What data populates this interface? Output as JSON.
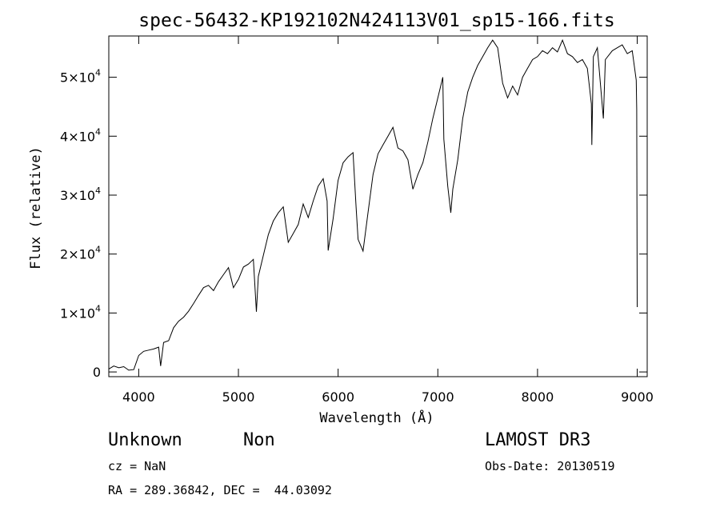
{
  "chart_data": {
    "type": "line",
    "title": "spec-56432-KP192102N424113V01_sp15-166.fits",
    "xlabel": "Wavelength (Å)",
    "ylabel": "Flux (relative)",
    "xlim": [
      3700,
      9100
    ],
    "ylim": [
      -800,
      57000
    ],
    "xticks": [
      4000,
      5000,
      6000,
      7000,
      8000,
      9000
    ],
    "xtick_labels": [
      "4000",
      "5000",
      "6000",
      "7000",
      "8000",
      "9000"
    ],
    "yticks": [
      0,
      10000,
      20000,
      30000,
      40000,
      50000
    ],
    "ytick_labels": [
      {
        "mant": "0",
        "exp": ""
      },
      {
        "mant": "1×10",
        "exp": "4"
      },
      {
        "mant": "2×10",
        "exp": "4"
      },
      {
        "mant": "3×10",
        "exp": "4"
      },
      {
        "mant": "4×10",
        "exp": "4"
      },
      {
        "mant": "5×10",
        "exp": "4"
      }
    ],
    "grid": false,
    "series": [
      {
        "values": [
          [
            3700,
            500
          ],
          [
            3750,
            1000
          ],
          [
            3800,
            700
          ],
          [
            3850,
            900
          ],
          [
            3900,
            300
          ],
          [
            3950,
            400
          ],
          [
            4000,
            2800
          ],
          [
            4050,
            3500
          ],
          [
            4100,
            3700
          ],
          [
            4150,
            3900
          ],
          [
            4200,
            4200
          ],
          [
            4220,
            1000
          ],
          [
            4250,
            5000
          ],
          [
            4300,
            5300
          ],
          [
            4350,
            7500
          ],
          [
            4400,
            8600
          ],
          [
            4450,
            9300
          ],
          [
            4500,
            10300
          ],
          [
            4550,
            11600
          ],
          [
            4600,
            13000
          ],
          [
            4650,
            14300
          ],
          [
            4700,
            14700
          ],
          [
            4750,
            13800
          ],
          [
            4800,
            15300
          ],
          [
            4850,
            16500
          ],
          [
            4900,
            17700
          ],
          [
            4950,
            14300
          ],
          [
            5000,
            15700
          ],
          [
            5050,
            17800
          ],
          [
            5100,
            18300
          ],
          [
            5150,
            19100
          ],
          [
            5180,
            10200
          ],
          [
            5200,
            16200
          ],
          [
            5250,
            19800
          ],
          [
            5300,
            23300
          ],
          [
            5350,
            25600
          ],
          [
            5400,
            27000
          ],
          [
            5450,
            28000
          ],
          [
            5500,
            22000
          ],
          [
            5550,
            23500
          ],
          [
            5600,
            25000
          ],
          [
            5650,
            28500
          ],
          [
            5700,
            26200
          ],
          [
            5750,
            29000
          ],
          [
            5800,
            31500
          ],
          [
            5850,
            32800
          ],
          [
            5890,
            29000
          ],
          [
            5900,
            20600
          ],
          [
            5950,
            26000
          ],
          [
            6000,
            32500
          ],
          [
            6050,
            35500
          ],
          [
            6100,
            36500
          ],
          [
            6150,
            37200
          ],
          [
            6180,
            28000
          ],
          [
            6200,
            22500
          ],
          [
            6250,
            20500
          ],
          [
            6300,
            27000
          ],
          [
            6350,
            33500
          ],
          [
            6400,
            37000
          ],
          [
            6450,
            38500
          ],
          [
            6500,
            40000
          ],
          [
            6550,
            41500
          ],
          [
            6600,
            38000
          ],
          [
            6650,
            37500
          ],
          [
            6700,
            36000
          ],
          [
            6750,
            31000
          ],
          [
            6800,
            33500
          ],
          [
            6850,
            35500
          ],
          [
            6900,
            39000
          ],
          [
            6950,
            43000
          ],
          [
            7000,
            46500
          ],
          [
            7050,
            50000
          ],
          [
            7060,
            39500
          ],
          [
            7100,
            31500
          ],
          [
            7130,
            27000
          ],
          [
            7150,
            31000
          ],
          [
            7200,
            36000
          ],
          [
            7250,
            43000
          ],
          [
            7300,
            47500
          ],
          [
            7350,
            50000
          ],
          [
            7400,
            52000
          ],
          [
            7450,
            53500
          ],
          [
            7500,
            55000
          ],
          [
            7550,
            56300
          ],
          [
            7600,
            55000
          ],
          [
            7650,
            49000
          ],
          [
            7700,
            46500
          ],
          [
            7750,
            48500
          ],
          [
            7800,
            47000
          ],
          [
            7850,
            50000
          ],
          [
            7900,
            51500
          ],
          [
            7950,
            53000
          ],
          [
            8000,
            53500
          ],
          [
            8050,
            54500
          ],
          [
            8100,
            54000
          ],
          [
            8150,
            55000
          ],
          [
            8200,
            54300
          ],
          [
            8250,
            56300
          ],
          [
            8300,
            54000
          ],
          [
            8350,
            53500
          ],
          [
            8400,
            52500
          ],
          [
            8450,
            53000
          ],
          [
            8500,
            51500
          ],
          [
            8540,
            45500
          ],
          [
            8545,
            38500
          ],
          [
            8560,
            53500
          ],
          [
            8600,
            55000
          ],
          [
            8640,
            47000
          ],
          [
            8660,
            43000
          ],
          [
            8680,
            53000
          ],
          [
            8750,
            54500
          ],
          [
            8800,
            55000
          ],
          [
            8850,
            55500
          ],
          [
            8900,
            54000
          ],
          [
            8950,
            54500
          ],
          [
            8990,
            49500
          ],
          [
            8995,
            44500
          ],
          [
            9000,
            11000
          ]
        ]
      }
    ]
  },
  "info": {
    "class_name": "Unknown",
    "subclass": "Non",
    "survey": "LAMOST DR3",
    "cz": "cz = NaN",
    "obs_date": "Obs-Date: 20130519",
    "coords": "RA = 289.36842, DEC =  44.03092"
  }
}
